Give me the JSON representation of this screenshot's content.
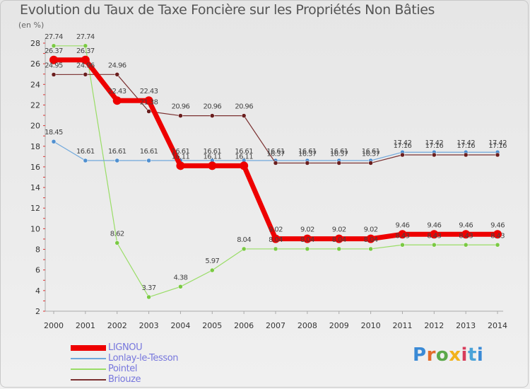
{
  "title": "Evolution du Taux de Taxe Foncière sur les Propriétés Non Bâties",
  "unit_label": "(en %)",
  "logo_text": "Proxiti",
  "chart_data": {
    "type": "line",
    "title": "Evolution du Taux de Taxe Foncière sur les Propriétés Non Bâties",
    "ylabel": "(en %)",
    "xlabel": "",
    "ylim": [
      2,
      28
    ],
    "yticks": [
      2,
      4,
      6,
      8,
      10,
      12,
      14,
      16,
      18,
      20,
      22,
      24,
      26,
      28
    ],
    "grid": false,
    "legend_position": "bottom-left",
    "categories": [
      "2000",
      "2001",
      "2002",
      "2003",
      "2004",
      "2005",
      "2006",
      "2007",
      "2008",
      "2009",
      "2010",
      "2011",
      "2012",
      "2013",
      "2014"
    ],
    "series": [
      {
        "name": "Pointel",
        "color": "#99dd66",
        "marker": "#7ac943",
        "width": 1.2,
        "values": [
          27.74,
          27.74,
          8.62,
          3.37,
          4.38,
          5.97,
          8.04,
          8.04,
          8.04,
          8.04,
          8.04,
          8.43,
          8.43,
          8.43,
          8.43
        ]
      },
      {
        "name": "Lonlay-le-Tesson",
        "color": "#6fa8dc",
        "marker": "#4f8fcf",
        "width": 1.2,
        "values": [
          18.45,
          16.61,
          16.61,
          16.61,
          16.61,
          16.61,
          16.61,
          16.61,
          16.61,
          16.61,
          16.61,
          17.42,
          17.42,
          17.42,
          17.42
        ]
      },
      {
        "name": "Briouze",
        "color": "#7a3030",
        "marker": "#6a1e1e",
        "width": 1.2,
        "values": [
          24.95,
          24.96,
          24.96,
          21.38,
          20.96,
          20.96,
          20.96,
          16.37,
          16.37,
          16.37,
          16.37,
          17.16,
          17.16,
          17.16,
          17.16
        ]
      },
      {
        "name": "LIGNOU",
        "color": "#ee0000",
        "marker": "#ee0000",
        "width": 7,
        "values": [
          26.37,
          26.37,
          22.43,
          22.43,
          16.11,
          16.11,
          16.11,
          9.02,
          9.02,
          9.02,
          9.02,
          9.46,
          9.46,
          9.46,
          9.46
        ]
      }
    ],
    "legend": [
      "LIGNOU",
      "Lonlay-le-Tesson",
      "Pointel",
      "Briouze"
    ]
  }
}
